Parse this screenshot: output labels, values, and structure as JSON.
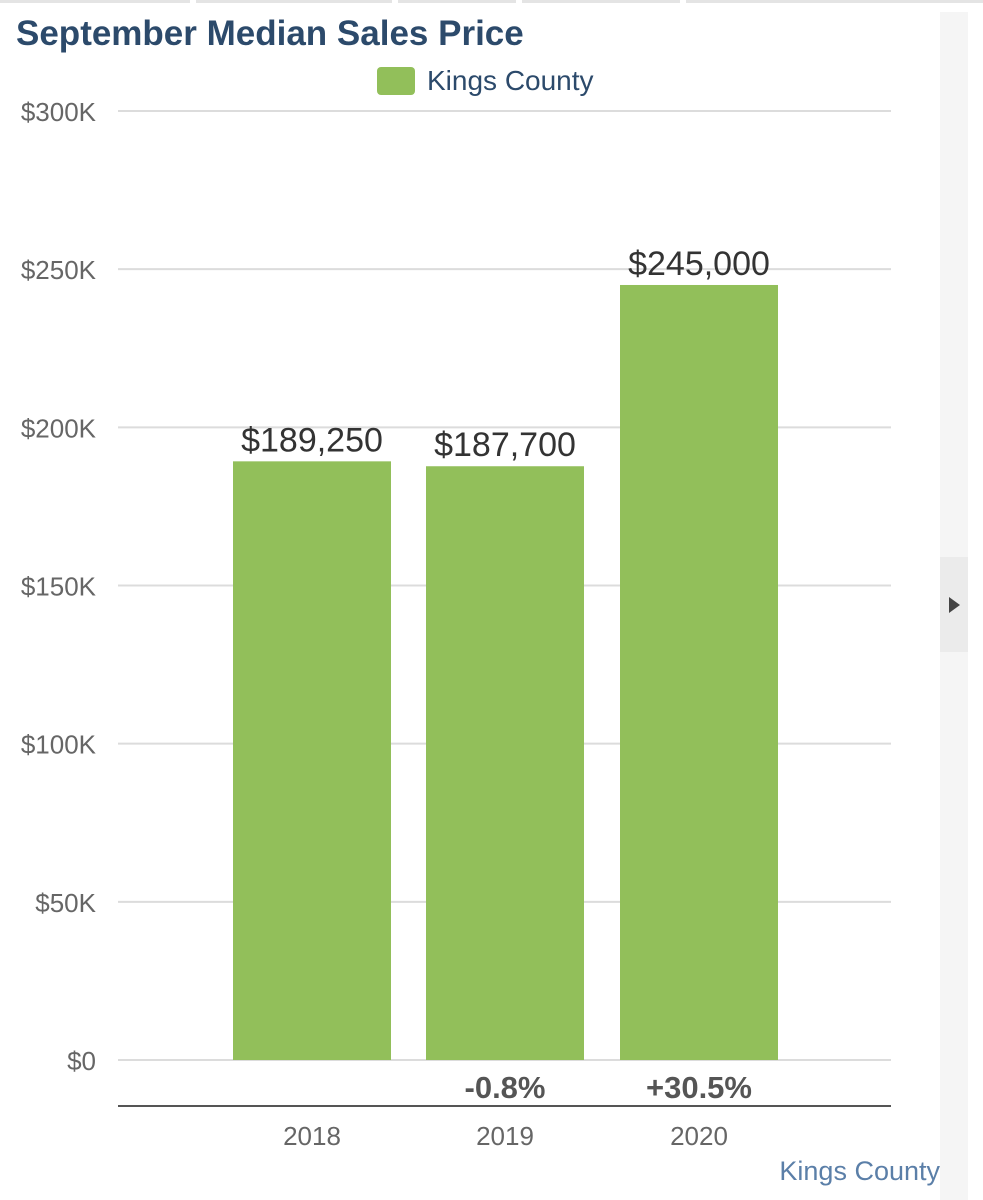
{
  "title": "September Median Sales Price",
  "legend": {
    "label": "Kings County",
    "color": "#92bf5a"
  },
  "source_label": "Kings County",
  "chart_data": {
    "type": "bar",
    "title": "September Median Sales Price",
    "xlabel": "",
    "ylabel": "",
    "categories": [
      "2018",
      "2019",
      "2020"
    ],
    "series": [
      {
        "name": "Kings County",
        "values": [
          189250,
          187700,
          245000
        ],
        "color": "#92bf5a"
      }
    ],
    "value_labels": [
      "$189,250",
      "$187,700",
      "$245,000"
    ],
    "change_labels": [
      "",
      "-0.8%",
      "+30.5%"
    ],
    "yticks": [
      0,
      50000,
      100000,
      150000,
      200000,
      250000,
      300000
    ],
    "ytick_labels": [
      "$0",
      "$50K",
      "$100K",
      "$150K",
      "$200K",
      "$250K",
      "$300K"
    ],
    "ylim": [
      0,
      300000
    ],
    "grid": true,
    "legend_position": "top-center"
  }
}
